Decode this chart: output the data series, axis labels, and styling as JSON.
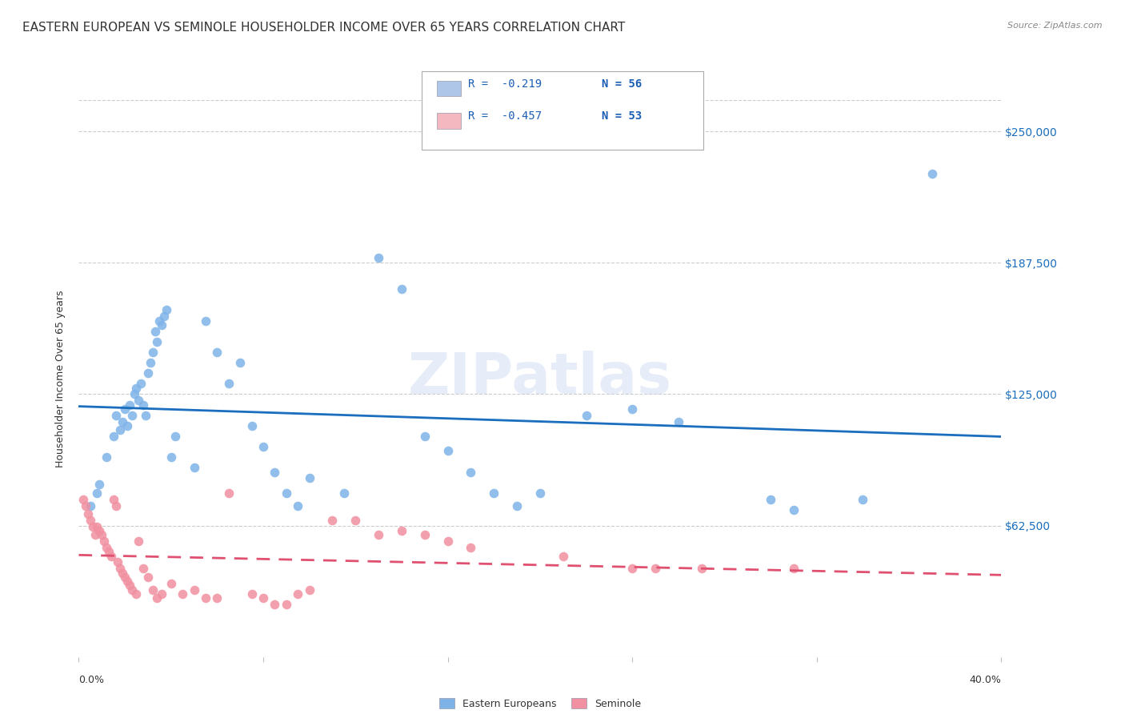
{
  "title": "EASTERN EUROPEAN VS SEMINOLE HOUSEHOLDER INCOME OVER 65 YEARS CORRELATION CHART",
  "source": "Source: ZipAtlas.com",
  "ylabel": "Householder Income Over 65 years",
  "ytick_labels": [
    "$62,500",
    "$125,000",
    "$187,500",
    "$250,000"
  ],
  "ytick_values": [
    62500,
    125000,
    187500,
    250000
  ],
  "ylim": [
    0,
    265000
  ],
  "xlim": [
    0.0,
    0.4
  ],
  "legend_entries": [
    {
      "label_r": "R =  -0.219",
      "label_n": "N = 56",
      "color": "#aec6e8"
    },
    {
      "label_r": "R =  -0.457",
      "label_n": "N = 53",
      "color": "#f4b8c1"
    }
  ],
  "legend_r_color": "#1a5fb4",
  "blue_scatter": [
    [
      0.005,
      72000
    ],
    [
      0.008,
      78000
    ],
    [
      0.009,
      82000
    ],
    [
      0.012,
      95000
    ],
    [
      0.015,
      105000
    ],
    [
      0.016,
      115000
    ],
    [
      0.018,
      108000
    ],
    [
      0.019,
      112000
    ],
    [
      0.02,
      118000
    ],
    [
      0.021,
      110000
    ],
    [
      0.022,
      120000
    ],
    [
      0.023,
      115000
    ],
    [
      0.024,
      125000
    ],
    [
      0.025,
      128000
    ],
    [
      0.026,
      122000
    ],
    [
      0.027,
      130000
    ],
    [
      0.028,
      120000
    ],
    [
      0.029,
      115000
    ],
    [
      0.03,
      135000
    ],
    [
      0.031,
      140000
    ],
    [
      0.032,
      145000
    ],
    [
      0.033,
      155000
    ],
    [
      0.034,
      150000
    ],
    [
      0.035,
      160000
    ],
    [
      0.036,
      158000
    ],
    [
      0.037,
      162000
    ],
    [
      0.038,
      165000
    ],
    [
      0.04,
      95000
    ],
    [
      0.042,
      105000
    ],
    [
      0.05,
      90000
    ],
    [
      0.055,
      160000
    ],
    [
      0.06,
      145000
    ],
    [
      0.065,
      130000
    ],
    [
      0.07,
      140000
    ],
    [
      0.075,
      110000
    ],
    [
      0.08,
      100000
    ],
    [
      0.085,
      88000
    ],
    [
      0.09,
      78000
    ],
    [
      0.095,
      72000
    ],
    [
      0.1,
      85000
    ],
    [
      0.115,
      78000
    ],
    [
      0.13,
      190000
    ],
    [
      0.14,
      175000
    ],
    [
      0.15,
      105000
    ],
    [
      0.16,
      98000
    ],
    [
      0.17,
      88000
    ],
    [
      0.18,
      78000
    ],
    [
      0.19,
      72000
    ],
    [
      0.2,
      78000
    ],
    [
      0.22,
      115000
    ],
    [
      0.24,
      118000
    ],
    [
      0.26,
      112000
    ],
    [
      0.3,
      75000
    ],
    [
      0.31,
      70000
    ],
    [
      0.34,
      75000
    ],
    [
      0.37,
      230000
    ]
  ],
  "pink_scatter": [
    [
      0.002,
      75000
    ],
    [
      0.003,
      72000
    ],
    [
      0.004,
      68000
    ],
    [
      0.005,
      65000
    ],
    [
      0.006,
      62000
    ],
    [
      0.007,
      58000
    ],
    [
      0.008,
      62000
    ],
    [
      0.009,
      60000
    ],
    [
      0.01,
      58000
    ],
    [
      0.011,
      55000
    ],
    [
      0.012,
      52000
    ],
    [
      0.013,
      50000
    ],
    [
      0.014,
      48000
    ],
    [
      0.015,
      75000
    ],
    [
      0.016,
      72000
    ],
    [
      0.017,
      45000
    ],
    [
      0.018,
      42000
    ],
    [
      0.019,
      40000
    ],
    [
      0.02,
      38000
    ],
    [
      0.021,
      36000
    ],
    [
      0.022,
      34000
    ],
    [
      0.023,
      32000
    ],
    [
      0.025,
      30000
    ],
    [
      0.026,
      55000
    ],
    [
      0.028,
      42000
    ],
    [
      0.03,
      38000
    ],
    [
      0.032,
      32000
    ],
    [
      0.034,
      28000
    ],
    [
      0.036,
      30000
    ],
    [
      0.04,
      35000
    ],
    [
      0.045,
      30000
    ],
    [
      0.05,
      32000
    ],
    [
      0.055,
      28000
    ],
    [
      0.06,
      28000
    ],
    [
      0.065,
      78000
    ],
    [
      0.075,
      30000
    ],
    [
      0.08,
      28000
    ],
    [
      0.085,
      25000
    ],
    [
      0.09,
      25000
    ],
    [
      0.095,
      30000
    ],
    [
      0.1,
      32000
    ],
    [
      0.11,
      65000
    ],
    [
      0.12,
      65000
    ],
    [
      0.13,
      58000
    ],
    [
      0.14,
      60000
    ],
    [
      0.15,
      58000
    ],
    [
      0.16,
      55000
    ],
    [
      0.17,
      52000
    ],
    [
      0.21,
      48000
    ],
    [
      0.24,
      42000
    ],
    [
      0.25,
      42000
    ],
    [
      0.27,
      42000
    ],
    [
      0.31,
      42000
    ]
  ],
  "blue_line_color": "#1a6ebd",
  "pink_line_color": "#e05070",
  "scatter_blue_color": "#7fb3e8",
  "scatter_pink_color": "#f090a0",
  "grid_color": "#cccccc",
  "background_color": "#ffffff",
  "title_fontsize": 11,
  "tick_fontsize": 9
}
